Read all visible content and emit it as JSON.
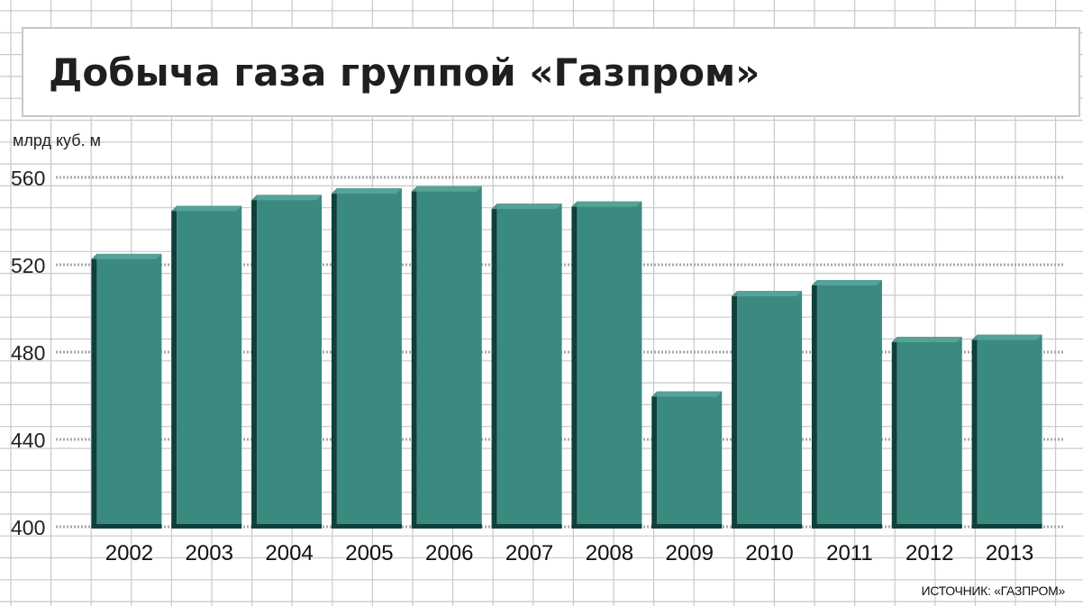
{
  "title": "Добыча газа группой «Газпром»",
  "source": "ИСТОЧНИК: «ГАЗПРОМ»",
  "colors": {
    "bar_front": "#3a8a80",
    "bar_side": "#0f403b",
    "bar_top": "#5fa89e",
    "grid": "#c9c9c9",
    "dotted_line": "#a8a8a8"
  },
  "chart_data": {
    "type": "bar",
    "title": "Добыча газа группой «Газпром»",
    "ylabel": "млрд куб. м",
    "xlabel": "",
    "categories": [
      "2002",
      "2003",
      "2004",
      "2005",
      "2006",
      "2007",
      "2008",
      "2009",
      "2010",
      "2011",
      "2012",
      "2013"
    ],
    "values": [
      525,
      547,
      552,
      555,
      556,
      548,
      549,
      462,
      508,
      513,
      487,
      488
    ],
    "ylim": [
      400,
      560
    ],
    "yticks": [
      400,
      440,
      480,
      520,
      560
    ],
    "grid": true
  }
}
